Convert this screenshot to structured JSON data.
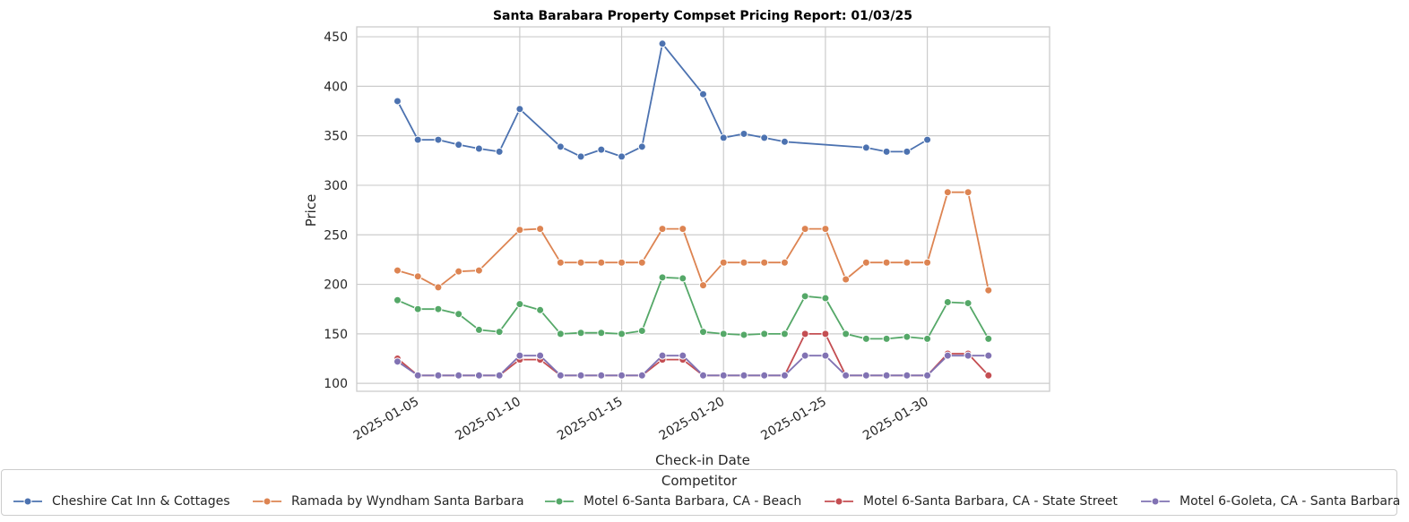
{
  "chart_data": {
    "type": "line",
    "title": "Santa Barabara Property Compset Pricing Report: 01/03/25",
    "xlabel": "Check-in Date",
    "ylabel": "Price",
    "ylim": [
      92,
      460
    ],
    "xlim": [
      "2025-01-02",
      "2025-02-05"
    ],
    "yticks": [
      100,
      150,
      200,
      250,
      300,
      350,
      400,
      450
    ],
    "xticks": [
      "2025-01-05",
      "2025-01-10",
      "2025-01-15",
      "2025-01-20",
      "2025-01-25",
      "2025-01-30"
    ],
    "grid": true,
    "legend_title": "Competitor",
    "legend_position": "bottom",
    "series": [
      {
        "name": "Cheshire Cat Inn & Cottages",
        "color": "#4c72b0",
        "points": [
          [
            "2025-01-04",
            385
          ],
          [
            "2025-01-05",
            346
          ],
          [
            "2025-01-06",
            346
          ],
          [
            "2025-01-07",
            341
          ],
          [
            "2025-01-08",
            337
          ],
          [
            "2025-01-09",
            334
          ],
          [
            "2025-01-10",
            377
          ],
          [
            "2025-01-12",
            339
          ],
          [
            "2025-01-13",
            329
          ],
          [
            "2025-01-14",
            336
          ],
          [
            "2025-01-15",
            329
          ],
          [
            "2025-01-16",
            339
          ],
          [
            "2025-01-17",
            443
          ],
          [
            "2025-01-19",
            392
          ],
          [
            "2025-01-20",
            348
          ],
          [
            "2025-01-21",
            352
          ],
          [
            "2025-01-22",
            348
          ],
          [
            "2025-01-23",
            344
          ],
          [
            "2025-01-27",
            338
          ],
          [
            "2025-01-28",
            334
          ],
          [
            "2025-01-29",
            334
          ],
          [
            "2025-01-30",
            346
          ]
        ]
      },
      {
        "name": "Ramada by Wyndham Santa Barbara",
        "color": "#dd8452",
        "points": [
          [
            "2025-01-04",
            214
          ],
          [
            "2025-01-05",
            208
          ],
          [
            "2025-01-06",
            197
          ],
          [
            "2025-01-07",
            213
          ],
          [
            "2025-01-08",
            214
          ],
          [
            "2025-01-10",
            255
          ],
          [
            "2025-01-11",
            256
          ],
          [
            "2025-01-12",
            222
          ],
          [
            "2025-01-13",
            222
          ],
          [
            "2025-01-14",
            222
          ],
          [
            "2025-01-15",
            222
          ],
          [
            "2025-01-16",
            222
          ],
          [
            "2025-01-17",
            256
          ],
          [
            "2025-01-18",
            256
          ],
          [
            "2025-01-19",
            199
          ],
          [
            "2025-01-20",
            222
          ],
          [
            "2025-01-21",
            222
          ],
          [
            "2025-01-22",
            222
          ],
          [
            "2025-01-23",
            222
          ],
          [
            "2025-01-24",
            256
          ],
          [
            "2025-01-25",
            256
          ],
          [
            "2025-01-26",
            205
          ],
          [
            "2025-01-27",
            222
          ],
          [
            "2025-01-28",
            222
          ],
          [
            "2025-01-29",
            222
          ],
          [
            "2025-01-30",
            222
          ],
          [
            "2025-01-31",
            293
          ],
          [
            "2025-02-01",
            293
          ],
          [
            "2025-02-02",
            194
          ]
        ]
      },
      {
        "name": "Motel 6-Santa Barbara, CA - Beach",
        "color": "#55a868",
        "points": [
          [
            "2025-01-04",
            184
          ],
          [
            "2025-01-05",
            175
          ],
          [
            "2025-01-06",
            175
          ],
          [
            "2025-01-07",
            170
          ],
          [
            "2025-01-08",
            154
          ],
          [
            "2025-01-09",
            152
          ],
          [
            "2025-01-10",
            180
          ],
          [
            "2025-01-11",
            174
          ],
          [
            "2025-01-12",
            150
          ],
          [
            "2025-01-13",
            151
          ],
          [
            "2025-01-14",
            151
          ],
          [
            "2025-01-15",
            150
          ],
          [
            "2025-01-16",
            153
          ],
          [
            "2025-01-17",
            207
          ],
          [
            "2025-01-18",
            206
          ],
          [
            "2025-01-19",
            152
          ],
          [
            "2025-01-20",
            150
          ],
          [
            "2025-01-21",
            149
          ],
          [
            "2025-01-22",
            150
          ],
          [
            "2025-01-23",
            150
          ],
          [
            "2025-01-24",
            188
          ],
          [
            "2025-01-25",
            186
          ],
          [
            "2025-01-26",
            150
          ],
          [
            "2025-01-27",
            145
          ],
          [
            "2025-01-28",
            145
          ],
          [
            "2025-01-29",
            147
          ],
          [
            "2025-01-30",
            145
          ],
          [
            "2025-01-31",
            182
          ],
          [
            "2025-02-01",
            181
          ],
          [
            "2025-02-02",
            145
          ]
        ]
      },
      {
        "name": "Motel 6-Santa Barbara, CA - State Street",
        "color": "#c44e52",
        "points": [
          [
            "2025-01-04",
            125
          ],
          [
            "2025-01-05",
            108
          ],
          [
            "2025-01-06",
            108
          ],
          [
            "2025-01-07",
            108
          ],
          [
            "2025-01-08",
            108
          ],
          [
            "2025-01-09",
            108
          ],
          [
            "2025-01-10",
            124
          ],
          [
            "2025-01-11",
            124
          ],
          [
            "2025-01-12",
            108
          ],
          [
            "2025-01-13",
            108
          ],
          [
            "2025-01-14",
            108
          ],
          [
            "2025-01-15",
            108
          ],
          [
            "2025-01-16",
            108
          ],
          [
            "2025-01-17",
            124
          ],
          [
            "2025-01-18",
            124
          ],
          [
            "2025-01-19",
            108
          ],
          [
            "2025-01-20",
            108
          ],
          [
            "2025-01-21",
            108
          ],
          [
            "2025-01-22",
            108
          ],
          [
            "2025-01-23",
            108
          ],
          [
            "2025-01-24",
            150
          ],
          [
            "2025-01-25",
            150
          ],
          [
            "2025-01-26",
            108
          ],
          [
            "2025-01-27",
            108
          ],
          [
            "2025-01-28",
            108
          ],
          [
            "2025-01-29",
            108
          ],
          [
            "2025-01-30",
            108
          ],
          [
            "2025-01-31",
            130
          ],
          [
            "2025-02-01",
            130
          ],
          [
            "2025-02-02",
            108
          ]
        ]
      },
      {
        "name": "Motel 6-Goleta, CA - Santa Barbara",
        "color": "#8172b3",
        "points": [
          [
            "2025-01-04",
            122
          ],
          [
            "2025-01-05",
            108
          ],
          [
            "2025-01-06",
            108
          ],
          [
            "2025-01-07",
            108
          ],
          [
            "2025-01-08",
            108
          ],
          [
            "2025-01-09",
            108
          ],
          [
            "2025-01-10",
            128
          ],
          [
            "2025-01-11",
            128
          ],
          [
            "2025-01-12",
            108
          ],
          [
            "2025-01-13",
            108
          ],
          [
            "2025-01-14",
            108
          ],
          [
            "2025-01-15",
            108
          ],
          [
            "2025-01-16",
            108
          ],
          [
            "2025-01-17",
            128
          ],
          [
            "2025-01-18",
            128
          ],
          [
            "2025-01-19",
            108
          ],
          [
            "2025-01-20",
            108
          ],
          [
            "2025-01-21",
            108
          ],
          [
            "2025-01-22",
            108
          ],
          [
            "2025-01-23",
            108
          ],
          [
            "2025-01-24",
            128
          ],
          [
            "2025-01-25",
            128
          ],
          [
            "2025-01-26",
            108
          ],
          [
            "2025-01-27",
            108
          ],
          [
            "2025-01-28",
            108
          ],
          [
            "2025-01-29",
            108
          ],
          [
            "2025-01-30",
            108
          ],
          [
            "2025-01-31",
            128
          ],
          [
            "2025-02-01",
            128
          ],
          [
            "2025-02-02",
            128
          ]
        ]
      }
    ]
  }
}
